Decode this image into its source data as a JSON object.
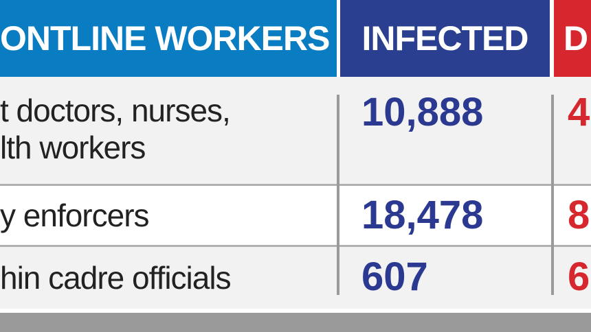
{
  "header": {
    "columns": [
      "ONTLINE WORKERS",
      "INFECTED",
      "D"
    ]
  },
  "table": {
    "rows": [
      {
        "label": [
          "t doctors, nurses,",
          "lth workers"
        ],
        "infected": "10,888",
        "deaths": "4"
      },
      {
        "label": [
          "y enforcers"
        ],
        "infected": "18,478",
        "deaths": "8"
      },
      {
        "label": [
          "hin cadre officials"
        ],
        "infected": "607",
        "deaths": "6"
      }
    ]
  }
}
